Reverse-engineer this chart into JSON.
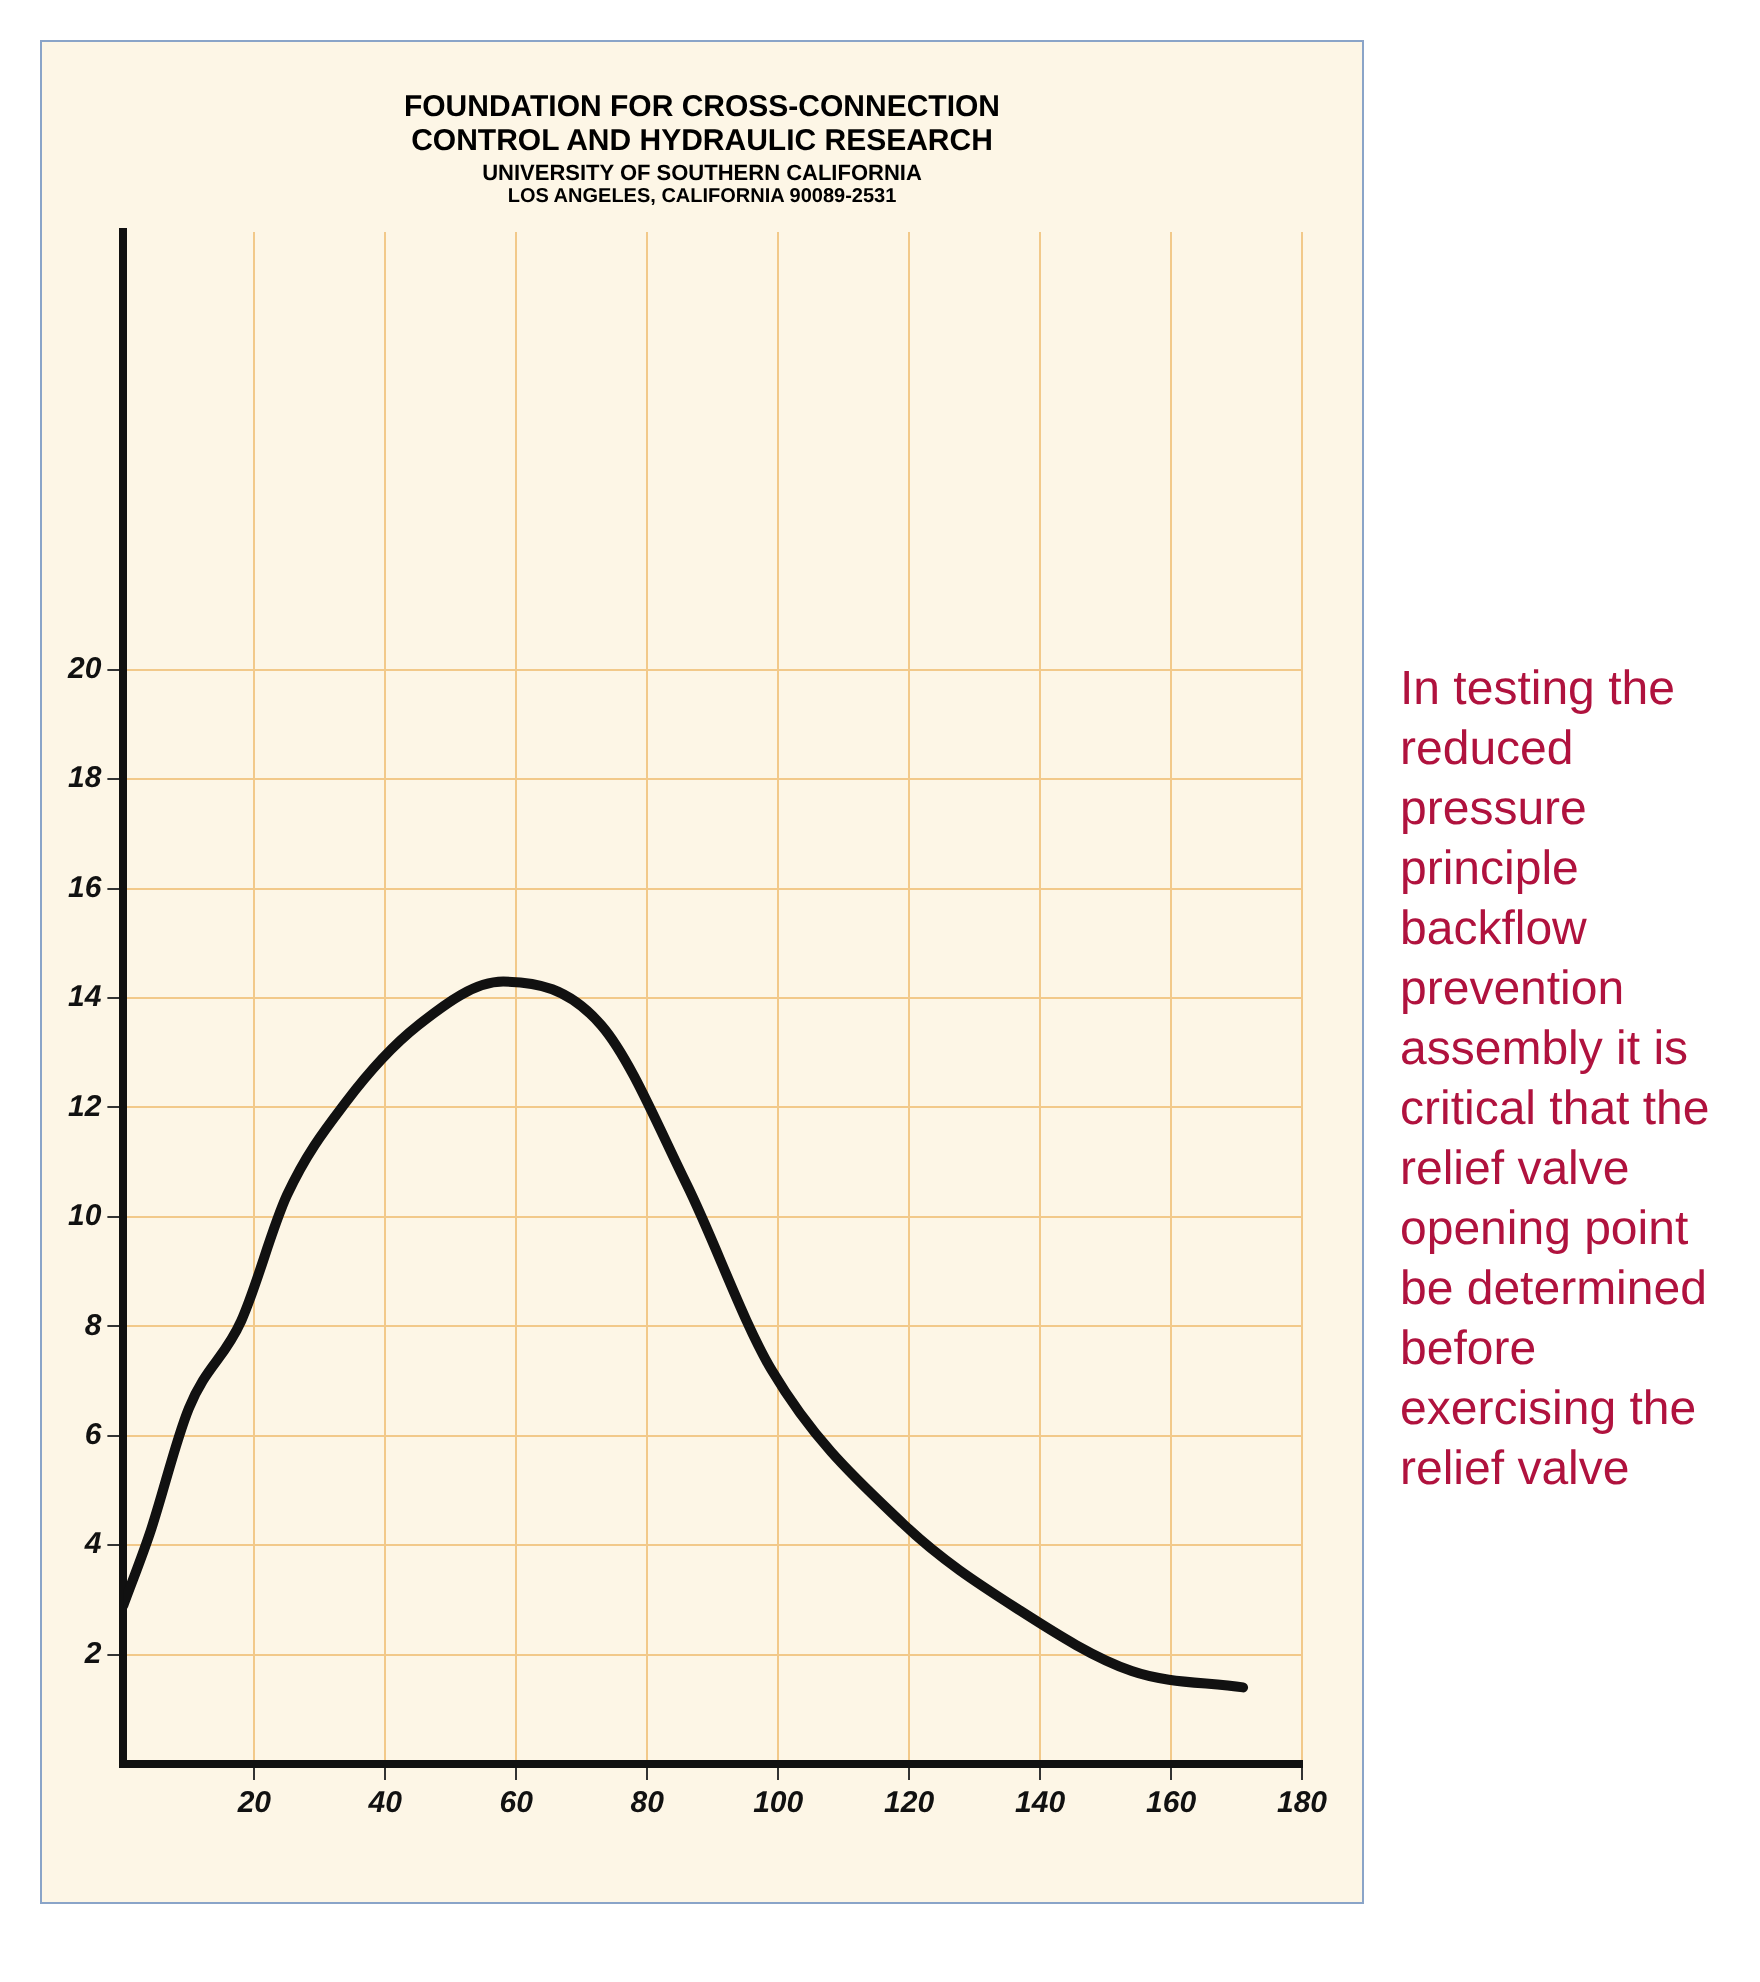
{
  "chart_data": {
    "type": "line",
    "title": "FOUNDATION FOR CROSS-CONNECTION CONTROL AND HYDRAULIC RESEARCH",
    "subtitle": "UNIVERSITY OF SOUTHERN CALIFORNIA",
    "annotations": [
      "LOS ANGELES, CALIFORNIA 90089-2531",
      "In testing the reduced pressure principle backflow prevention assembly it is critical that the relief valve opening point be determined before exercising the relief valve"
    ],
    "series": [
      {
        "color": "#111111",
        "x": [
          0,
          4,
          10,
          18,
          25,
          34,
          45,
          58,
          73,
          86,
          99,
          119,
          137,
          154,
          171
        ],
        "values": [
          2.9,
          4.2,
          6.5,
          8.1,
          10.4,
          12.1,
          13.5,
          14.3,
          13.5,
          10.6,
          7.2,
          4.4,
          2.8,
          1.7,
          1.4
        ]
      }
    ],
    "xlim": [
      0,
      180
    ],
    "xticks": [
      20,
      40,
      60,
      80,
      100,
      120,
      140,
      160,
      180
    ],
    "ylim": [
      0,
      28
    ],
    "yticks": [
      2,
      4,
      6,
      8,
      10,
      12,
      14,
      16,
      18,
      20
    ],
    "grid": true,
    "marker": "none",
    "line_style": "solid"
  }
}
